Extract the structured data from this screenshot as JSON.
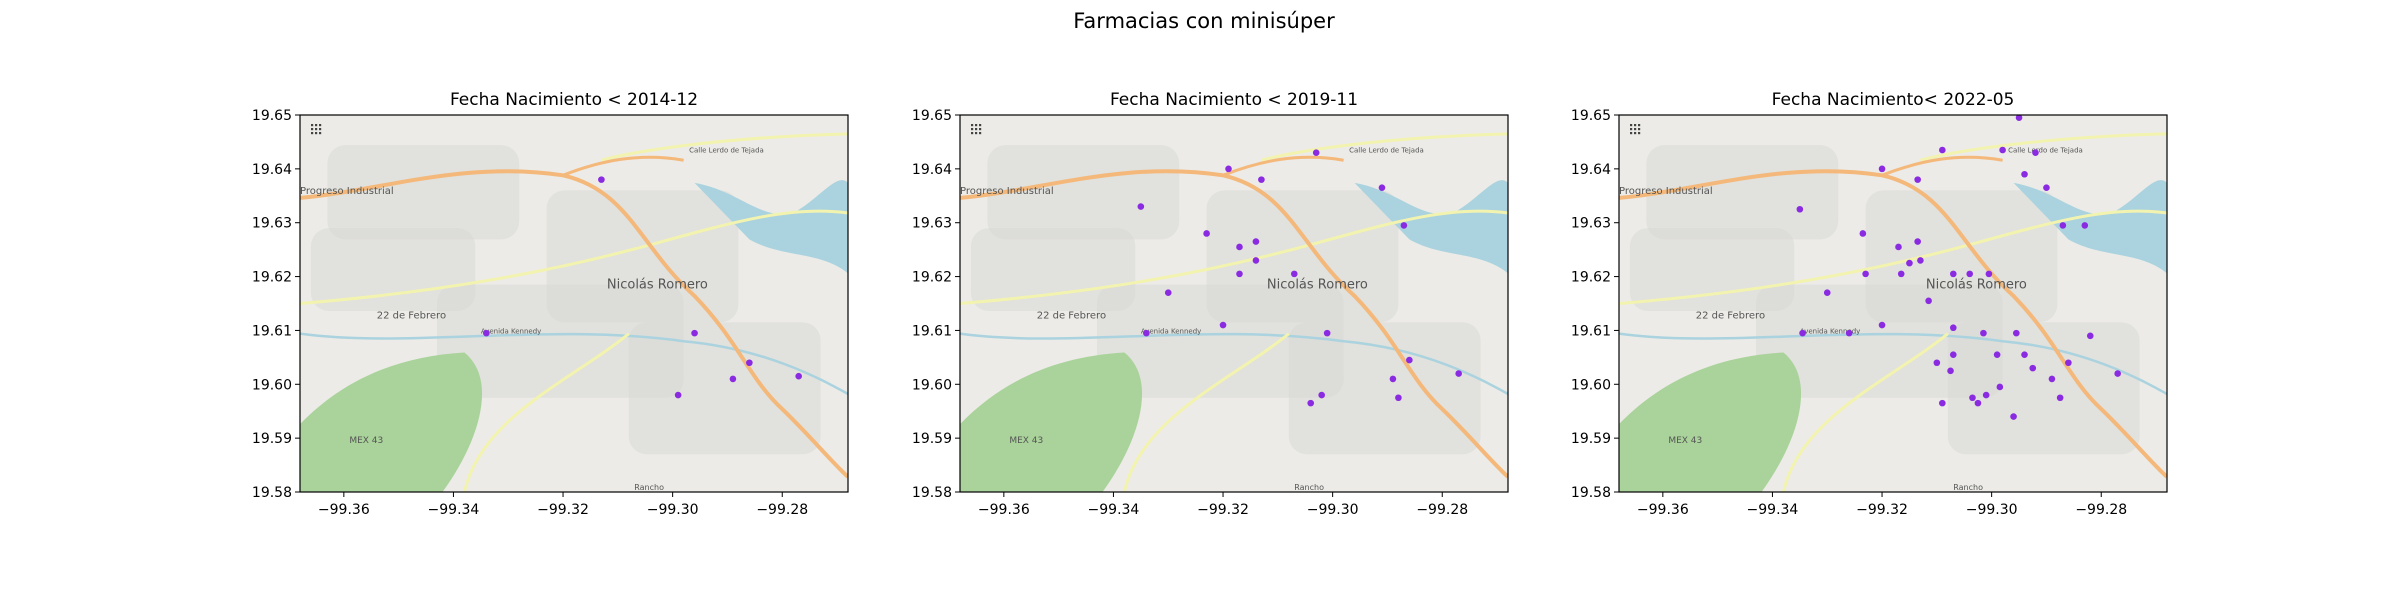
{
  "figure": {
    "suptitle": "Farmacias con minisúper"
  },
  "map_labels": {
    "industrial": "Progreso Industrial",
    "town": "Nicolás Romero",
    "febrero": "22 de Febrero",
    "highway": "MEX 43",
    "rancho": "Rancho",
    "avenue": "Avenida Kennedy",
    "calle": "Calle Lerdo de Tejada"
  },
  "colors": {
    "point": "#8a2be2",
    "land": "#ecebe7",
    "urban": "#d8d8d6",
    "park": "#a9d39a",
    "water": "#aad3df",
    "primary_road": "#f4b87a",
    "secondary_road": "#f3f3b0"
  },
  "chart_data": [
    {
      "type": "scatter",
      "title": "Fecha Nacimiento < 2014-12",
      "xlim": [
        -99.368,
        -99.268
      ],
      "ylim": [
        19.58,
        19.65
      ],
      "xticks": [
        -99.36,
        -99.34,
        -99.32,
        -99.3,
        -99.28
      ],
      "yticks": [
        19.58,
        19.59,
        19.6,
        19.61,
        19.62,
        19.63,
        19.64,
        19.65
      ],
      "points": [
        {
          "x": -99.313,
          "y": 19.638
        },
        {
          "x": -99.334,
          "y": 19.6095
        },
        {
          "x": -99.296,
          "y": 19.6095
        },
        {
          "x": -99.299,
          "y": 19.598
        },
        {
          "x": -99.289,
          "y": 19.601
        },
        {
          "x": -99.286,
          "y": 19.604
        },
        {
          "x": -99.277,
          "y": 19.6015
        }
      ]
    },
    {
      "type": "scatter",
      "title": "Fecha Nacimiento < 2019-11",
      "xlim": [
        -99.368,
        -99.268
      ],
      "ylim": [
        19.58,
        19.65
      ],
      "xticks": [
        -99.36,
        -99.34,
        -99.32,
        -99.3,
        -99.28
      ],
      "yticks": [
        19.58,
        19.59,
        19.6,
        19.61,
        19.62,
        19.63,
        19.64,
        19.65
      ],
      "points": [
        {
          "x": -99.319,
          "y": 19.64
        },
        {
          "x": -99.313,
          "y": 19.638
        },
        {
          "x": -99.303,
          "y": 19.643
        },
        {
          "x": -99.291,
          "y": 19.6365
        },
        {
          "x": -99.335,
          "y": 19.633
        },
        {
          "x": -99.323,
          "y": 19.628
        },
        {
          "x": -99.317,
          "y": 19.6255
        },
        {
          "x": -99.314,
          "y": 19.6265
        },
        {
          "x": -99.314,
          "y": 19.623
        },
        {
          "x": -99.307,
          "y": 19.6205
        },
        {
          "x": -99.317,
          "y": 19.6205
        },
        {
          "x": -99.33,
          "y": 19.617
        },
        {
          "x": -99.334,
          "y": 19.6095
        },
        {
          "x": -99.32,
          "y": 19.611
        },
        {
          "x": -99.301,
          "y": 19.6095
        },
        {
          "x": -99.302,
          "y": 19.598
        },
        {
          "x": -99.304,
          "y": 19.5965
        },
        {
          "x": -99.289,
          "y": 19.601
        },
        {
          "x": -99.286,
          "y": 19.6045
        },
        {
          "x": -99.288,
          "y": 19.5975
        },
        {
          "x": -99.277,
          "y": 19.602
        },
        {
          "x": -99.287,
          "y": 19.6295
        }
      ]
    },
    {
      "type": "scatter",
      "title": "Fecha Nacimiento< 2022-05",
      "xlim": [
        -99.368,
        -99.268
      ],
      "ylim": [
        19.58,
        19.65
      ],
      "xticks": [
        -99.36,
        -99.34,
        -99.32,
        -99.3,
        -99.28
      ],
      "yticks": [
        19.58,
        19.59,
        19.6,
        19.61,
        19.62,
        19.63,
        19.64,
        19.65
      ],
      "points": [
        {
          "x": -99.295,
          "y": 19.6495
        },
        {
          "x": -99.32,
          "y": 19.64
        },
        {
          "x": -99.3135,
          "y": 19.638
        },
        {
          "x": -99.309,
          "y": 19.6435
        },
        {
          "x": -99.298,
          "y": 19.6435
        },
        {
          "x": -99.292,
          "y": 19.643
        },
        {
          "x": -99.294,
          "y": 19.639
        },
        {
          "x": -99.29,
          "y": 19.6365
        },
        {
          "x": -99.335,
          "y": 19.6325
        },
        {
          "x": -99.3235,
          "y": 19.628
        },
        {
          "x": -99.3135,
          "y": 19.6265
        },
        {
          "x": -99.317,
          "y": 19.6255
        },
        {
          "x": -99.315,
          "y": 19.6225
        },
        {
          "x": -99.313,
          "y": 19.623
        },
        {
          "x": -99.307,
          "y": 19.6205
        },
        {
          "x": -99.3165,
          "y": 19.6205
        },
        {
          "x": -99.323,
          "y": 19.6205
        },
        {
          "x": -99.304,
          "y": 19.6205
        },
        {
          "x": -99.3005,
          "y": 19.6205
        },
        {
          "x": -99.33,
          "y": 19.617
        },
        {
          "x": -99.3115,
          "y": 19.6155
        },
        {
          "x": -99.3345,
          "y": 19.6095
        },
        {
          "x": -99.326,
          "y": 19.6095
        },
        {
          "x": -99.32,
          "y": 19.611
        },
        {
          "x": -99.307,
          "y": 19.6105
        },
        {
          "x": -99.3015,
          "y": 19.6095
        },
        {
          "x": -99.2955,
          "y": 19.6095
        },
        {
          "x": -99.294,
          "y": 19.6055
        },
        {
          "x": -99.299,
          "y": 19.6055
        },
        {
          "x": -99.307,
          "y": 19.6055
        },
        {
          "x": -99.31,
          "y": 19.604
        },
        {
          "x": -99.3075,
          "y": 19.6025
        },
        {
          "x": -99.2925,
          "y": 19.603
        },
        {
          "x": -99.289,
          "y": 19.601
        },
        {
          "x": -99.286,
          "y": 19.604
        },
        {
          "x": -99.2875,
          "y": 19.5975
        },
        {
          "x": -99.2985,
          "y": 19.5995
        },
        {
          "x": -99.301,
          "y": 19.598
        },
        {
          "x": -99.3025,
          "y": 19.5965
        },
        {
          "x": -99.3035,
          "y": 19.5975
        },
        {
          "x": -99.309,
          "y": 19.5965
        },
        {
          "x": -99.296,
          "y": 19.594
        },
        {
          "x": -99.277,
          "y": 19.602
        },
        {
          "x": -99.282,
          "y": 19.609
        },
        {
          "x": -99.283,
          "y": 19.6295
        },
        {
          "x": -99.287,
          "y": 19.6295
        }
      ]
    }
  ]
}
